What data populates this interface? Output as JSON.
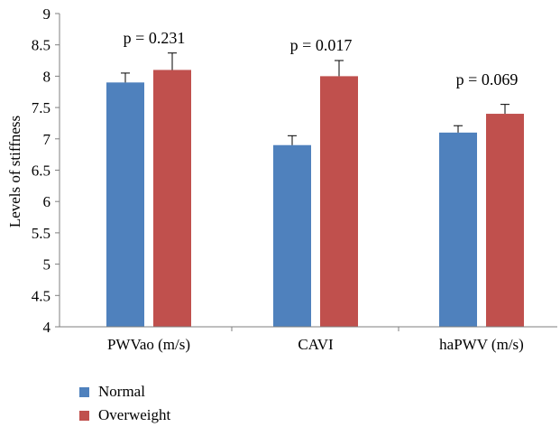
{
  "chart_data": {
    "type": "bar",
    "categories": [
      "PWVao (m/s)",
      "CAVI",
      "haPWV (m/s)"
    ],
    "series": [
      {
        "name": "Normal",
        "values": [
          7.9,
          6.9,
          7.1
        ],
        "errors": [
          0.15,
          0.15,
          0.11
        ],
        "color": "#4f81bd"
      },
      {
        "name": "Overweight",
        "values": [
          8.1,
          8.0,
          7.4
        ],
        "errors": [
          0.27,
          0.25,
          0.15
        ],
        "color": "#c0504d"
      }
    ],
    "annotations": [
      "p = 0.231",
      "p = 0.017",
      "p = 0.069"
    ],
    "ylabel": "Levels of stiffness",
    "ylim": [
      4,
      9
    ],
    "yticks": [
      4,
      4.5,
      5,
      5.5,
      6,
      6.5,
      7,
      7.5,
      8,
      8.5,
      9
    ],
    "legend_position": "bottom-left",
    "grid": false
  }
}
